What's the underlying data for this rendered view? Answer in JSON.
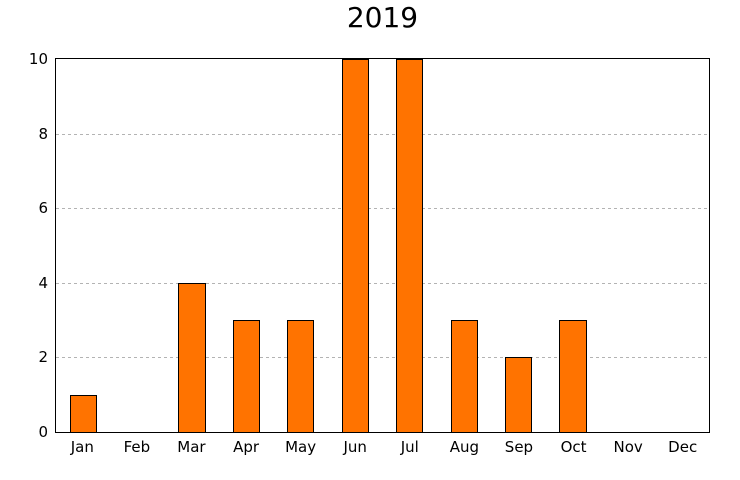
{
  "figure": {
    "background": "#ffffff"
  },
  "chart_data": {
    "type": "bar",
    "title": "2019",
    "categories": [
      "Jan",
      "Feb",
      "Mar",
      "Apr",
      "May",
      "Jun",
      "Jul",
      "Aug",
      "Sep",
      "Oct",
      "Nov",
      "Dec"
    ],
    "values": [
      1,
      0,
      4,
      3,
      3,
      10,
      10,
      3,
      2,
      3,
      0,
      0
    ],
    "xlabel": "",
    "ylabel": "",
    "ylim": [
      0,
      10
    ],
    "yticks": [
      0,
      2,
      4,
      6,
      8,
      10
    ],
    "grid": "horizontal-dotted",
    "legend": "none",
    "bar_width_ratio": 0.5,
    "colors": {
      "bar_fill": "#FF7300",
      "bar_edge": "#000000",
      "gridline": "#b3b3b3",
      "axis": "#000000",
      "text": "#000000",
      "background": "#ffffff"
    }
  }
}
